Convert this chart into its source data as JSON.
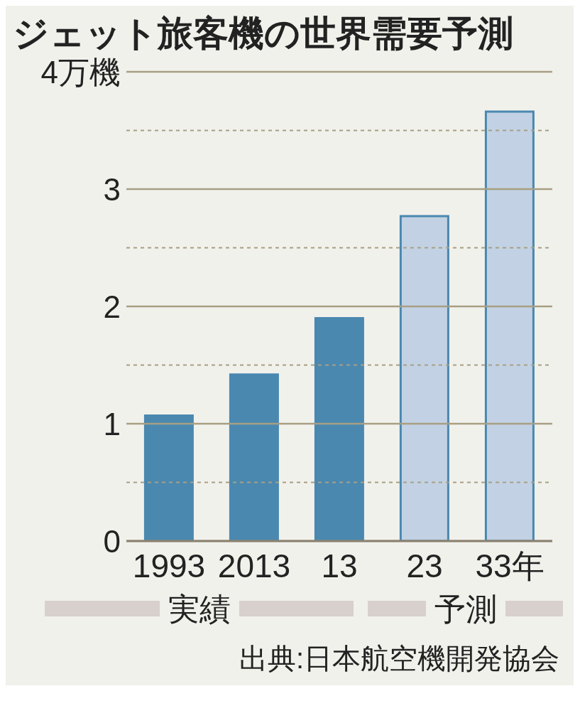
{
  "chart_data": {
    "type": "bar",
    "title": "ジェット旅客機の世界需要予測",
    "categories": [
      "1993",
      "2013",
      "13",
      "23",
      "33年"
    ],
    "values": [
      1.07,
      1.42,
      1.9,
      2.77,
      3.66
    ],
    "colors": [
      "#4a88b0",
      "#4a88b0",
      "#4a88b0",
      "#c2d2e4",
      "#c2d2e4"
    ],
    "ylim": [
      0,
      4
    ],
    "yticks": [
      0,
      {
        "value": 0.5,
        "label": null
      },
      1,
      {
        "value": 1.5,
        "label": null
      },
      2,
      {
        "value": 2.5,
        "label": null
      },
      3,
      {
        "value": 3.5,
        "label": null
      },
      {
        "value": 4,
        "label": "4万機"
      }
    ],
    "grid": "y",
    "annotations": [
      "実績",
      "予測",
      "出典:日本航空機開発協会"
    ]
  }
}
